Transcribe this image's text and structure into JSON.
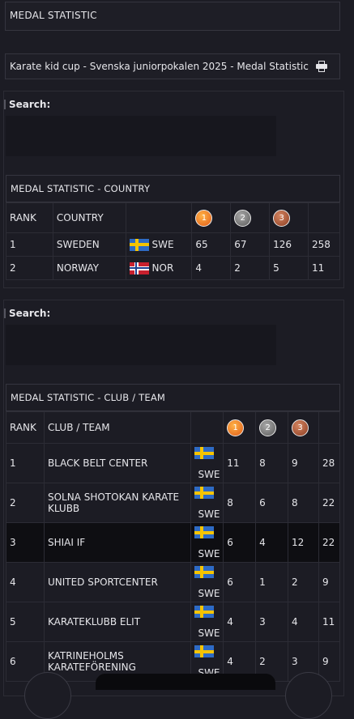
{
  "header": {
    "title": "MEDAL STATISTIC"
  },
  "event": {
    "name": "Karate kid cup - Svenska juniorpokalen 2025 - Medal Statistic",
    "print_icon": "print-icon"
  },
  "country_section": {
    "search_label": "Search:",
    "search_value": "",
    "table_title": "MEDAL STATISTIC - COUNTRY",
    "headers": {
      "rank": "RANK",
      "country": "COUNTRY",
      "gold": "1",
      "silver": "2",
      "bronze": "3"
    },
    "rows": [
      {
        "rank": "1",
        "country": "SWEDEN",
        "code": "SWE",
        "flag": "sweden-flag",
        "gold": "65",
        "silver": "67",
        "bronze": "126",
        "total": "258"
      },
      {
        "rank": "2",
        "country": "NORWAY",
        "code": "NOR",
        "flag": "norway-flag",
        "gold": "4",
        "silver": "2",
        "bronze": "5",
        "total": "11"
      }
    ]
  },
  "club_section": {
    "search_label": "Search:",
    "search_value": "",
    "table_title": "MEDAL STATISTIC - CLUB / TEAM",
    "headers": {
      "rank": "RANK",
      "club": "CLUB / TEAM",
      "gold": "1",
      "silver": "2",
      "bronze": "3"
    },
    "rows": [
      {
        "rank": "1",
        "club": "BLACK BELT CENTER",
        "code": "SWE",
        "gold": "11",
        "silver": "8",
        "bronze": "9",
        "total": "28"
      },
      {
        "rank": "2",
        "club": "SOLNA SHOTOKAN KARATE KLUBB",
        "code": "SWE",
        "gold": "8",
        "silver": "6",
        "bronze": "8",
        "total": "22"
      },
      {
        "rank": "3",
        "club": "SHIAI IF",
        "code": "SWE",
        "gold": "6",
        "silver": "4",
        "bronze": "12",
        "total": "22"
      },
      {
        "rank": "4",
        "club": "UNITED SPORTCENTER",
        "code": "SWE",
        "gold": "6",
        "silver": "1",
        "bronze": "2",
        "total": "9"
      },
      {
        "rank": "5",
        "club": "KARATEKLUBB ELIT",
        "code": "SWE",
        "gold": "4",
        "silver": "3",
        "bronze": "4",
        "total": "11"
      },
      {
        "rank": "6",
        "club": "KATRINEHOLMS KARATEFÖRENING",
        "code": "SWE",
        "gold": "4",
        "silver": "2",
        "bronze": "3",
        "total": "9"
      }
    ]
  },
  "colors": {
    "background": "#1c1c24",
    "gold": "#f08a24",
    "silver": "#7a7a7a",
    "bronze": "#b0583a"
  }
}
